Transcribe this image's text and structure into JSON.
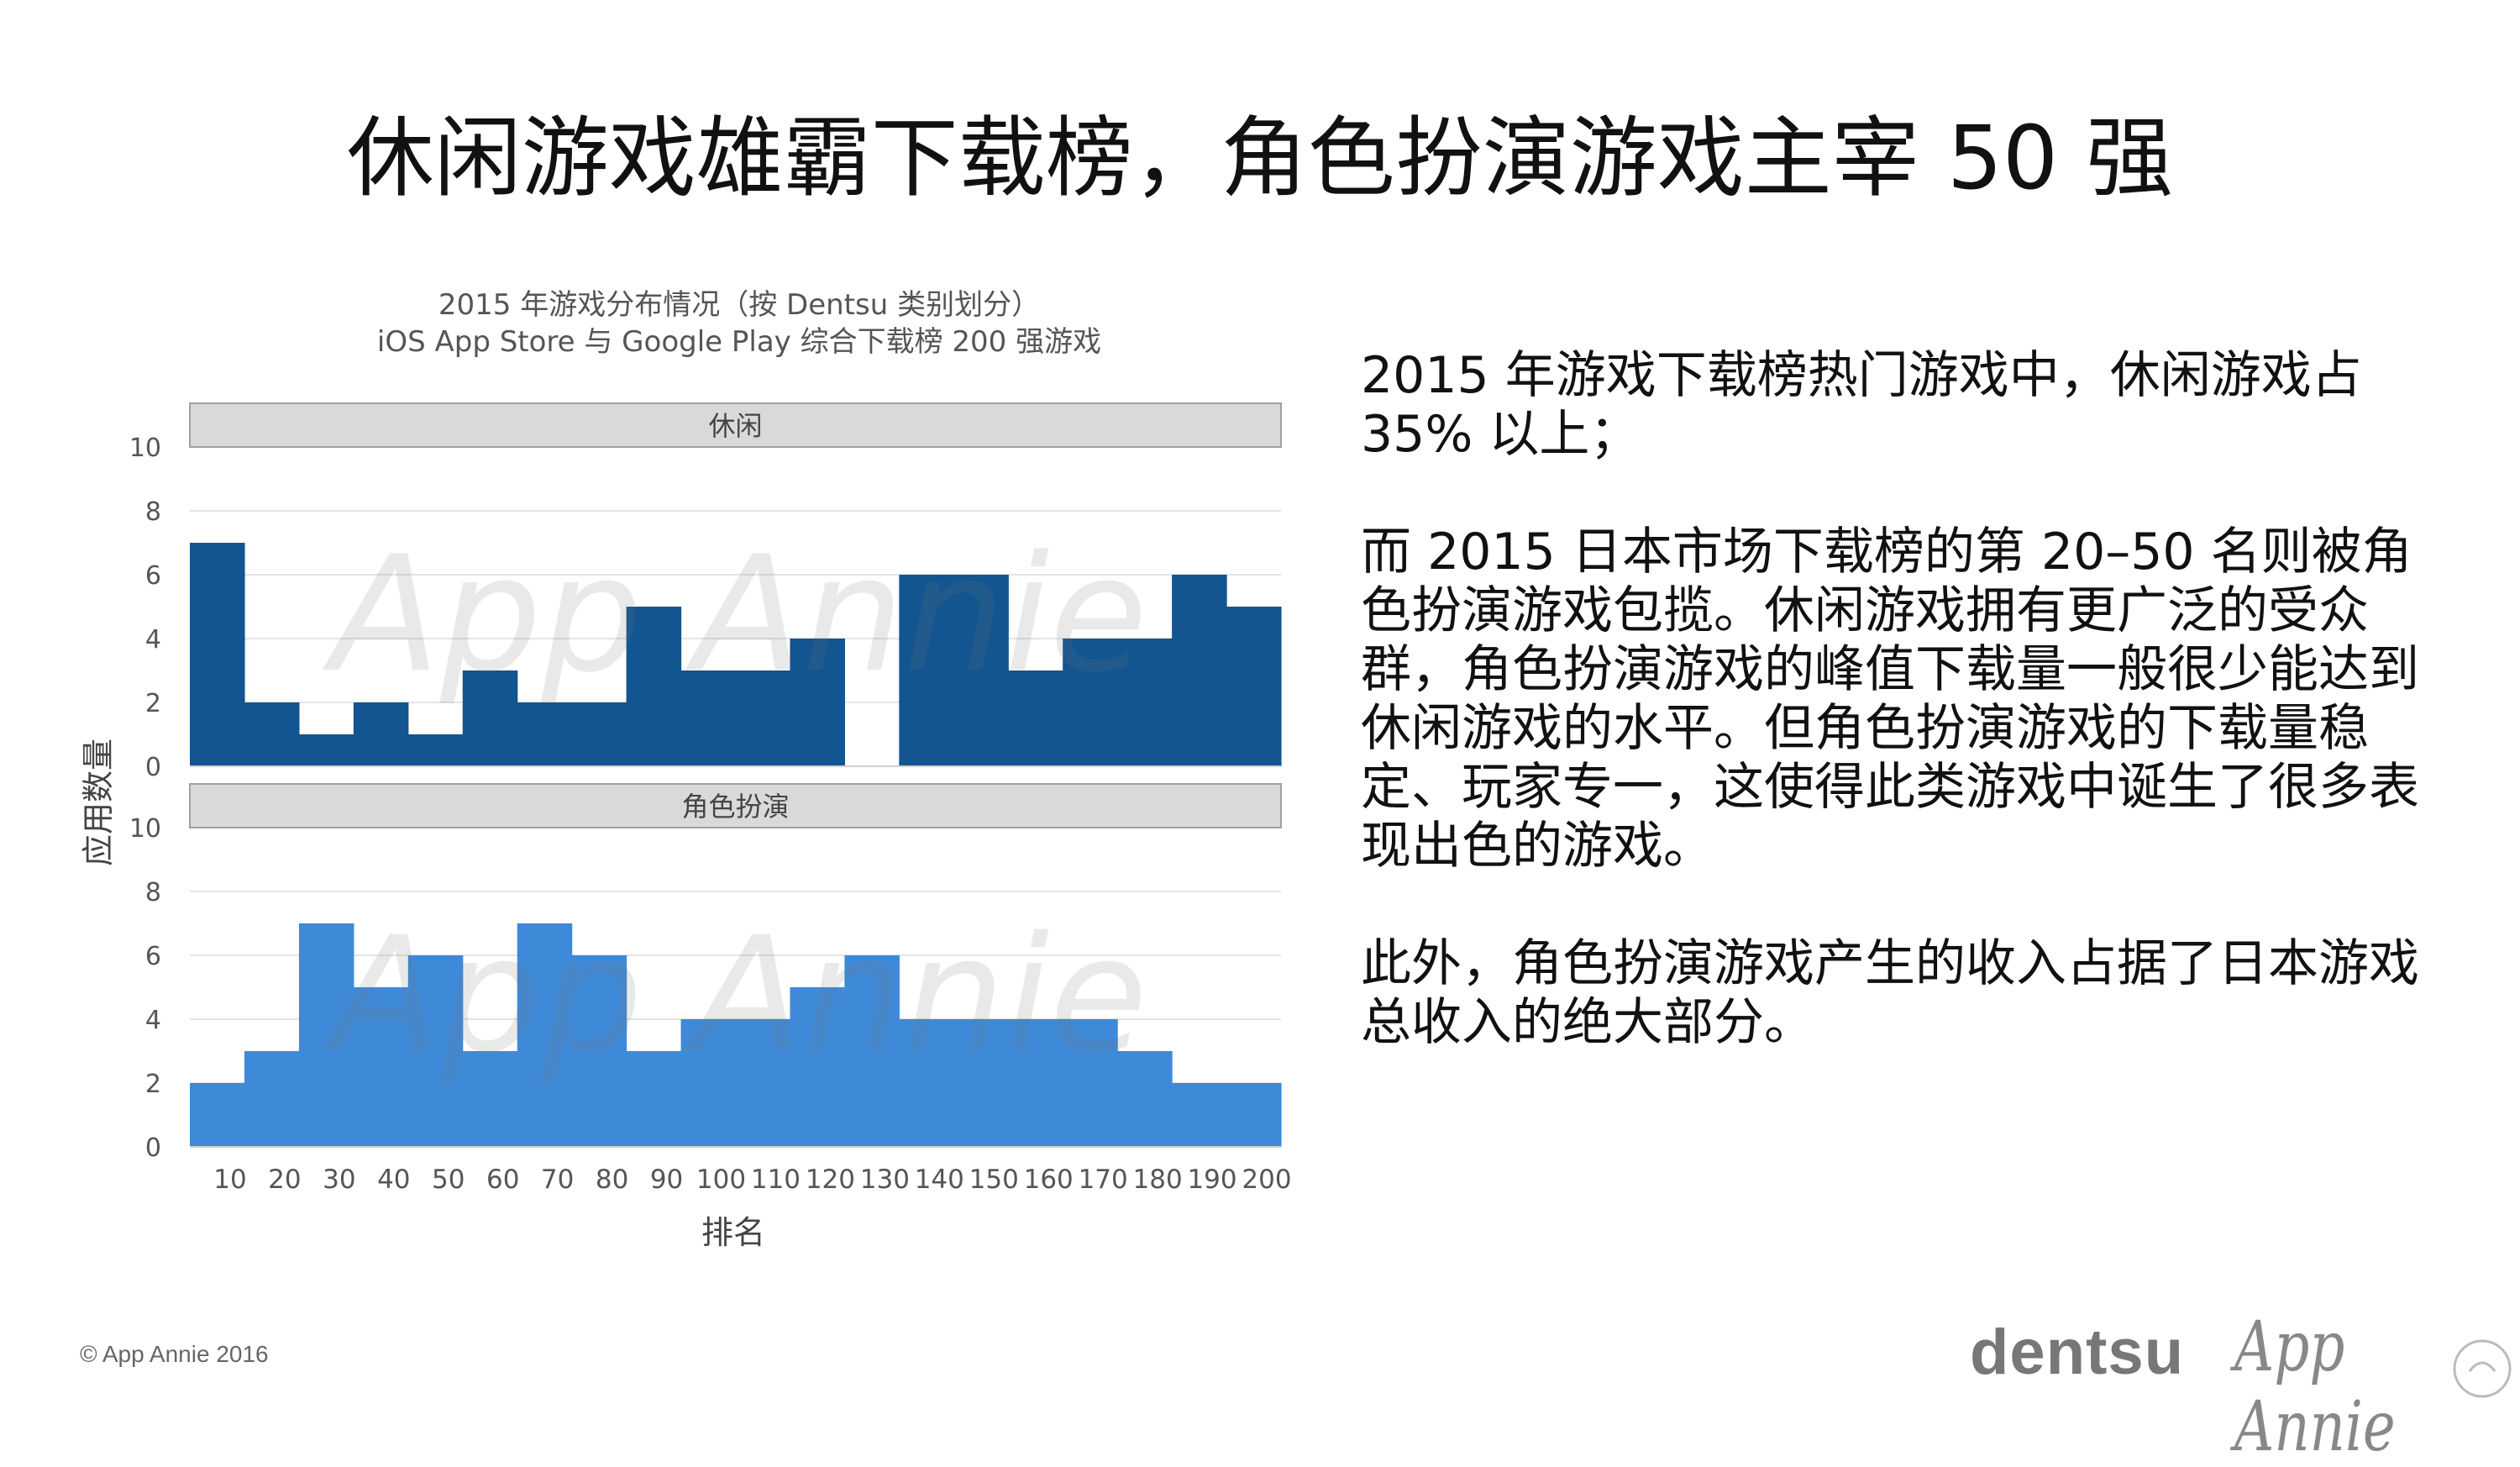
{
  "page": {
    "title": "休闲游戏雄霸下载榜，角色扮演游戏主宰 50 强",
    "paragraphs": [
      "2015 年游戏下载榜热门游戏中，休闲游戏占35% 以上；",
      "而 2015 日本市场下载榜的第 20–50 名则被角色扮演游戏包揽。休闲游戏拥有更广泛的受众群，角色扮演游戏的峰值下载量一般很少能达到休闲游戏的水平。但角色扮演游戏的下载量稳定、玩家专一，这使得此类游戏中诞生了很多表现出色的游戏。",
      "此外，角色扮演游戏产生的收入占据了日本游戏总收入的绝大部分。"
    ],
    "footer": "© App Annie 2016",
    "logos": {
      "dentsu": "dentsu",
      "appannie": "App Annie",
      "watermark": "App Annie"
    }
  },
  "chart_data": {
    "type": "bar",
    "title": "2015 年游戏分布情况（按 Dentsu 类别划分）",
    "subtitle": "iOS App Store 与 Google Play 综合下载榜 200 强游戏",
    "xlabel": "排名",
    "ylabel": "应用数量",
    "xlim": [
      0,
      200
    ],
    "ylim": [
      0,
      10
    ],
    "x_ticks": [
      10,
      20,
      30,
      40,
      50,
      60,
      70,
      80,
      90,
      100,
      110,
      120,
      130,
      140,
      150,
      160,
      170,
      180,
      190,
      200
    ],
    "y_ticks": [
      0,
      2,
      4,
      6,
      8,
      10
    ],
    "bin_width": 10,
    "panels": [
      {
        "name": "休闲",
        "color": "#125591",
        "bins": [
          {
            "start": 0,
            "end": 10,
            "value": 7
          },
          {
            "start": 10,
            "end": 20,
            "value": 2
          },
          {
            "start": 20,
            "end": 30,
            "value": 1
          },
          {
            "start": 30,
            "end": 40,
            "value": 2
          },
          {
            "start": 40,
            "end": 50,
            "value": 1
          },
          {
            "start": 50,
            "end": 60,
            "value": 3
          },
          {
            "start": 60,
            "end": 70,
            "value": 2
          },
          {
            "start": 70,
            "end": 80,
            "value": 2
          },
          {
            "start": 80,
            "end": 90,
            "value": 5
          },
          {
            "start": 90,
            "end": 100,
            "value": 3
          },
          {
            "start": 100,
            "end": 110,
            "value": 3
          },
          {
            "start": 110,
            "end": 120,
            "value": 4
          },
          {
            "start": 120,
            "end": 130,
            "value": 0
          },
          {
            "start": 130,
            "end": 140,
            "value": 6
          },
          {
            "start": 140,
            "end": 150,
            "value": 6
          },
          {
            "start": 150,
            "end": 160,
            "value": 3
          },
          {
            "start": 160,
            "end": 170,
            "value": 4
          },
          {
            "start": 170,
            "end": 180,
            "value": 4
          },
          {
            "start": 180,
            "end": 190,
            "value": 6
          },
          {
            "start": 190,
            "end": 200,
            "value": 5
          }
        ]
      },
      {
        "name": "角色扮演",
        "color": "#3f8ad8",
        "bins": [
          {
            "start": 0,
            "end": 10,
            "value": 2
          },
          {
            "start": 10,
            "end": 20,
            "value": 3
          },
          {
            "start": 20,
            "end": 30,
            "value": 7
          },
          {
            "start": 30,
            "end": 40,
            "value": 5
          },
          {
            "start": 40,
            "end": 50,
            "value": 6
          },
          {
            "start": 50,
            "end": 60,
            "value": 3
          },
          {
            "start": 60,
            "end": 70,
            "value": 7
          },
          {
            "start": 70,
            "end": 80,
            "value": 6
          },
          {
            "start": 80,
            "end": 90,
            "value": 3
          },
          {
            "start": 90,
            "end": 100,
            "value": 4
          },
          {
            "start": 100,
            "end": 110,
            "value": 4
          },
          {
            "start": 110,
            "end": 120,
            "value": 5
          },
          {
            "start": 120,
            "end": 130,
            "value": 6
          },
          {
            "start": 130,
            "end": 140,
            "value": 4
          },
          {
            "start": 140,
            "end": 150,
            "value": 4
          },
          {
            "start": 150,
            "end": 160,
            "value": 4
          },
          {
            "start": 160,
            "end": 170,
            "value": 4
          },
          {
            "start": 170,
            "end": 180,
            "value": 3
          },
          {
            "start": 180,
            "end": 190,
            "value": 2
          },
          {
            "start": 190,
            "end": 200,
            "value": 2
          }
        ]
      }
    ],
    "grid": true,
    "legend": "facet-strips"
  }
}
